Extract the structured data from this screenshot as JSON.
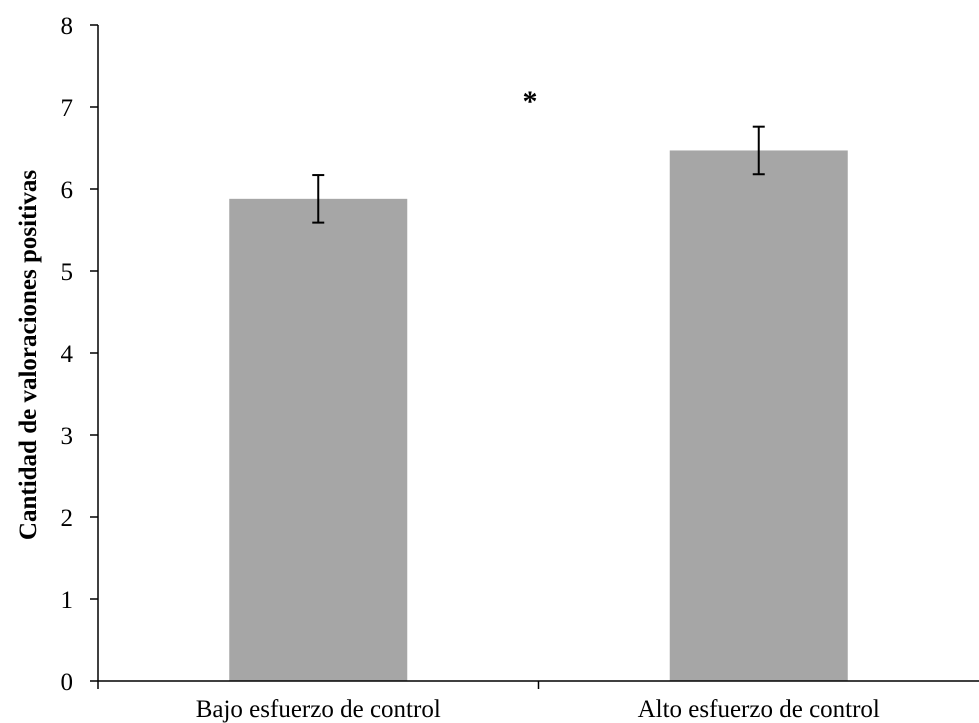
{
  "chart_data": {
    "type": "bar",
    "title": "",
    "xlabel": "",
    "ylabel": "Cantidad de valoraciones positivas",
    "categories": [
      "Bajo esfuerzo de control",
      "Alto esfuerzo de control"
    ],
    "values": [
      5.88,
      6.47
    ],
    "error": [
      0.29,
      0.29
    ],
    "ylim": [
      0,
      8
    ],
    "yticks": [
      0,
      1,
      2,
      3,
      4,
      5,
      6,
      7,
      8
    ],
    "grid": false,
    "legend": "none",
    "annotation": "*",
    "bar_color": "#a6a6a6",
    "axis_color": "#000000"
  }
}
